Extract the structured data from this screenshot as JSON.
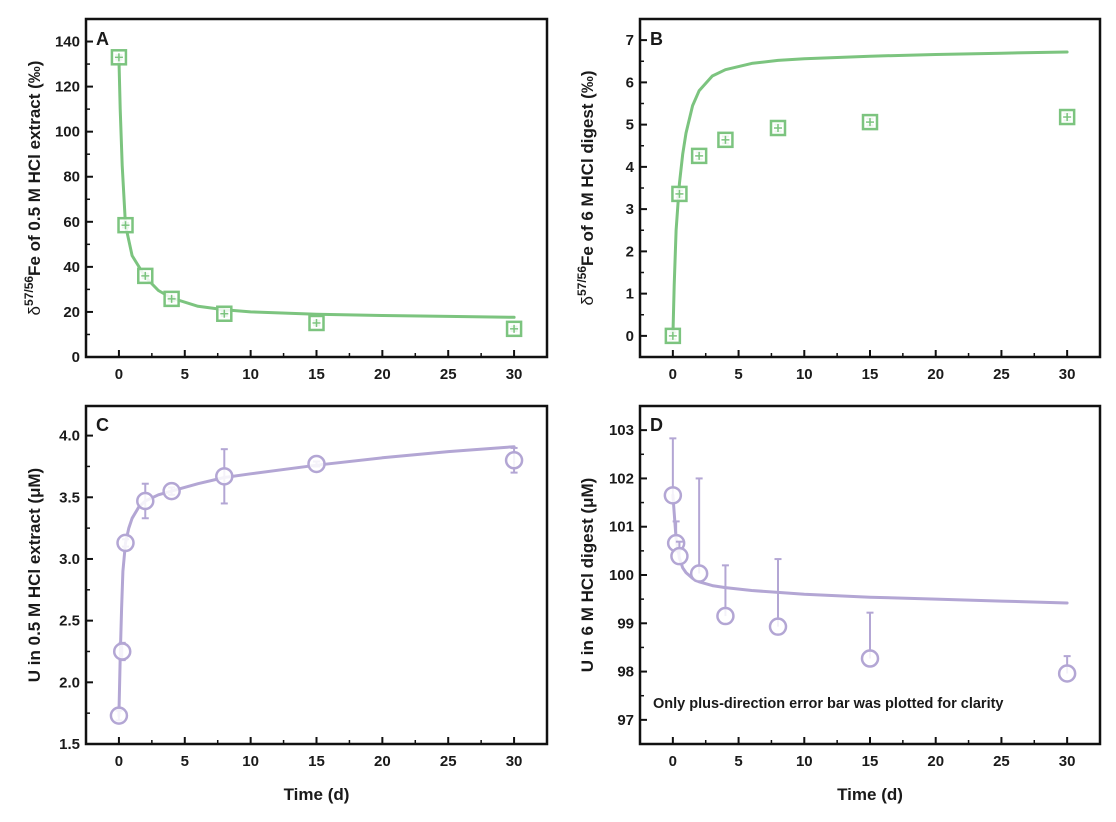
{
  "chart_data": [
    {
      "panel": "A",
      "type": "scatter",
      "marker": "square-plus",
      "color": "#7cc47f",
      "xlabel": "",
      "ylabel_prefix": "δ",
      "ylabel_sup": "57/56",
      "ylabel_main": "Fe of 0.5 M HCl extract (‰)",
      "xlim": [
        -2.5,
        32.5
      ],
      "ylim": [
        0,
        150
      ],
      "xticks": [
        0,
        5,
        10,
        15,
        20,
        25,
        30
      ],
      "yticks": [
        0,
        20,
        40,
        60,
        80,
        100,
        120,
        140
      ],
      "x": [
        0,
        0.5,
        2,
        4,
        8,
        15,
        30
      ],
      "y": [
        133,
        58.5,
        36,
        25.8,
        19.2,
        15.1,
        12.5
      ],
      "err": [
        1,
        1,
        1,
        1,
        1,
        1,
        1
      ],
      "fit": {
        "x": [
          0,
          0.1,
          0.25,
          0.5,
          1,
          2,
          3,
          4,
          6,
          8,
          10,
          15,
          20,
          25,
          30
        ],
        "y": [
          133,
          110,
          85,
          58.5,
          45,
          35.5,
          29.5,
          26.2,
          22.5,
          21,
          20,
          19,
          18.4,
          18,
          17.6
        ]
      }
    },
    {
      "panel": "B",
      "type": "scatter",
      "marker": "square-plus",
      "color": "#7cc47f",
      "xlabel": "",
      "ylabel_prefix": "δ",
      "ylabel_sup": "57/56",
      "ylabel_main": "Fe of 6 M HCl digest (‰)",
      "xlim": [
        -2.5,
        32.5
      ],
      "ylim": [
        -0.5,
        7.5
      ],
      "xticks": [
        0,
        5,
        10,
        15,
        20,
        25,
        30
      ],
      "yticks": [
        0,
        1,
        2,
        3,
        4,
        5,
        6,
        7
      ],
      "x": [
        0,
        0.5,
        2,
        4,
        8,
        15,
        30
      ],
      "y": [
        0,
        3.36,
        4.26,
        4.64,
        4.92,
        5.06,
        5.18
      ],
      "err": [
        0.08,
        0.08,
        0.08,
        0.08,
        0.08,
        0.08,
        0.08
      ],
      "fit": {
        "x": [
          0,
          0.1,
          0.25,
          0.5,
          0.75,
          1,
          1.5,
          2,
          3,
          4,
          6,
          8,
          10,
          15,
          20,
          25,
          30
        ],
        "y": [
          0,
          1.2,
          2.5,
          3.6,
          4.3,
          4.8,
          5.45,
          5.8,
          6.15,
          6.3,
          6.45,
          6.52,
          6.56,
          6.62,
          6.66,
          6.69,
          6.72
        ]
      }
    },
    {
      "panel": "C",
      "type": "scatter",
      "marker": "circle",
      "color": "#b3a6d4",
      "xlabel": "Time (d)",
      "ylabel_prefix": "",
      "ylabel_sup": "",
      "ylabel_main": "U in 0.5 M HCl extract (μM)",
      "xlim": [
        -2.5,
        32.5
      ],
      "ylim": [
        1.5,
        4.24
      ],
      "xticks": [
        0,
        5,
        10,
        15,
        20,
        25,
        30
      ],
      "yticks": [
        1.5,
        2.0,
        2.5,
        3.0,
        3.5,
        4.0
      ],
      "ytick_labels": [
        "1.5",
        "2.0",
        "2.5",
        "3.0",
        "3.5",
        "4.0"
      ],
      "x": [
        0,
        0.25,
        0.5,
        2,
        4,
        8,
        15,
        30
      ],
      "y": [
        1.73,
        2.25,
        3.13,
        3.47,
        3.55,
        3.67,
        3.77,
        3.8
      ],
      "err_plus": [
        0.04,
        0.07,
        0.03,
        0.14,
        0.03,
        0.22,
        0.02,
        0.1
      ],
      "err_minus": [
        0.04,
        0.07,
        0.03,
        0.14,
        0.03,
        0.22,
        0.02,
        0.1
      ],
      "fit": {
        "x": [
          0,
          0.1,
          0.2,
          0.3,
          0.5,
          0.75,
          1,
          1.5,
          2,
          3,
          4,
          6,
          8,
          10,
          15,
          20,
          25,
          30
        ],
        "y": [
          1.73,
          2.2,
          2.6,
          2.9,
          3.13,
          3.25,
          3.33,
          3.42,
          3.47,
          3.52,
          3.55,
          3.61,
          3.66,
          3.69,
          3.76,
          3.82,
          3.87,
          3.91
        ]
      }
    },
    {
      "panel": "D",
      "type": "scatter",
      "marker": "circle",
      "color": "#b3a6d4",
      "xlabel": "Time (d)",
      "ylabel_prefix": "",
      "ylabel_sup": "",
      "ylabel_main": "U in 6 M HCl digest (μM)",
      "annotation": "Only plus-direction error bar was plotted for clarity",
      "xlim": [
        -2.5,
        32.5
      ],
      "ylim": [
        96.5,
        103.5
      ],
      "xticks": [
        0,
        5,
        10,
        15,
        20,
        25,
        30
      ],
      "yticks": [
        97,
        98,
        99,
        100,
        101,
        102,
        103
      ],
      "x": [
        0,
        0.25,
        0.5,
        2,
        4,
        8,
        15,
        30
      ],
      "y": [
        101.65,
        100.66,
        100.39,
        100.03,
        99.15,
        98.93,
        98.27,
        97.96
      ],
      "err_plus": [
        1.18,
        0.45,
        0.3,
        1.97,
        1.05,
        1.4,
        0.95,
        0.36
      ],
      "err_minus": [
        0,
        0,
        0,
        0,
        0,
        0,
        0,
        0
      ],
      "fit": {
        "x": [
          0,
          0.25,
          0.5,
          0.75,
          1,
          1.5,
          2,
          3,
          4,
          6,
          8,
          10,
          15,
          20,
          25,
          30
        ],
        "y": [
          101.65,
          100.75,
          100.35,
          100.15,
          100.05,
          99.93,
          99.86,
          99.78,
          99.74,
          99.68,
          99.64,
          99.6,
          99.54,
          99.5,
          99.46,
          99.42
        ]
      }
    }
  ]
}
